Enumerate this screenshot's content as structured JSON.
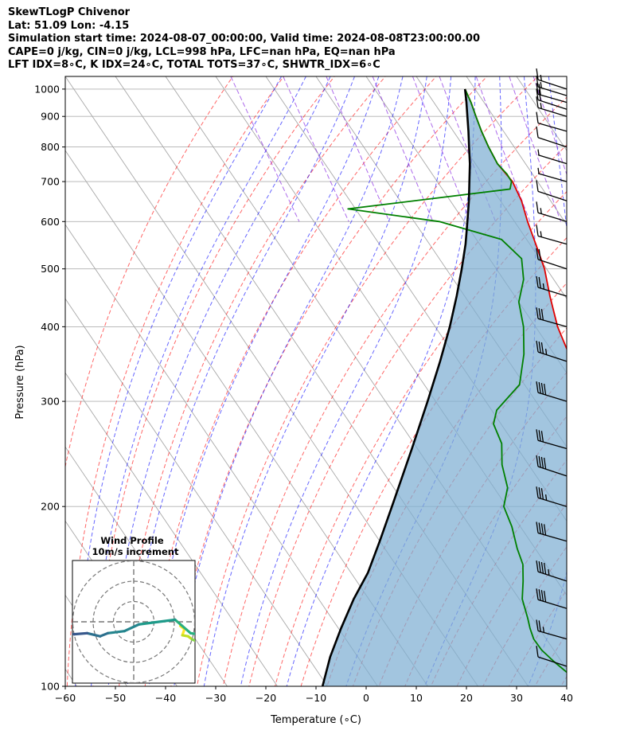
{
  "header": {
    "lines": [
      "SkewTLogP Chivenor",
      "Lat: 51.09   Lon: -4.15",
      "Simulation start time: 2024-08-07_00:00:00, Valid time: 2024-08-08T23:00:00.00",
      "CAPE=0 j/kg, CIN=0 j/kg, LCL=998 hPa, LFC=nan hPa, EQ=nan hPa",
      "LFT IDX=8∘C, K IDX=24∘C, TOTAL TOTS=37∘C, SHWTR_IDX=6∘C"
    ]
  },
  "chart_data": {
    "type": "line",
    "xlabel": "Temperature (∘C)",
    "ylabel": "Pressure (hPa)",
    "xlim": [
      -60,
      40
    ],
    "ylim": [
      1050,
      100
    ],
    "y_scale": "log",
    "grid": true,
    "x_ticks": [
      -60,
      -50,
      -40,
      -30,
      -20,
      -10,
      0,
      10,
      20,
      30,
      40
    ],
    "y_ticks": [
      1000,
      900,
      800,
      700,
      600,
      500,
      400,
      300,
      200,
      100
    ],
    "skew_screen": [
      [
        -60,
        1050,
        82,
        861
      ],
      [
        40,
        1050,
        712,
        861
      ],
      [
        5,
        1050,
        491,
        861
      ],
      [
        -23.3,
        100,
        237,
        96
      ],
      [
        12.7,
        100,
        540,
        96
      ],
      [
        -2,
        100,
        398,
        96
      ]
    ],
    "series": [
      {
        "color": "#e00000",
        "points": [
          [
            18.0,
            1000
          ],
          [
            17.4,
            950
          ],
          [
            16.5,
            900
          ],
          [
            15.6,
            850
          ],
          [
            14.9,
            800
          ],
          [
            14.4,
            750
          ],
          [
            15.0,
            700
          ],
          [
            14.2,
            650
          ],
          [
            12.6,
            600
          ],
          [
            11.2,
            550
          ],
          [
            9.6,
            500
          ],
          [
            7.0,
            450
          ],
          [
            4.4,
            400
          ],
          [
            2.6,
            350
          ],
          [
            -0.2,
            300
          ],
          [
            -3.6,
            250
          ],
          [
            -7.0,
            220
          ],
          [
            -10.8,
            200
          ],
          [
            -11.5,
            185
          ],
          [
            -12.0,
            165
          ],
          [
            -13.5,
            150
          ],
          [
            -14.5,
            140
          ],
          [
            -15.6,
            125
          ],
          [
            -18.0,
            115
          ],
          [
            -20.0,
            105
          ],
          [
            -20.5,
            100
          ]
        ]
      },
      {
        "color": "#008000",
        "points": [
          [
            18.0,
            1000
          ],
          [
            17.4,
            950
          ],
          [
            16.5,
            900
          ],
          [
            15.6,
            850
          ],
          [
            14.9,
            800
          ],
          [
            14.4,
            750
          ],
          [
            14.9,
            720
          ],
          [
            14.8,
            700
          ],
          [
            13.5,
            680
          ],
          [
            -21.5,
            630
          ],
          [
            -5.0,
            600
          ],
          [
            5.0,
            560
          ],
          [
            6.4,
            520
          ],
          [
            4.0,
            480
          ],
          [
            0.0,
            440
          ],
          [
            -2.4,
            400
          ],
          [
            -6.0,
            360
          ],
          [
            -11.0,
            320
          ],
          [
            -19.0,
            290
          ],
          [
            -21.5,
            275
          ],
          [
            -22.5,
            255
          ],
          [
            -25.3,
            235
          ],
          [
            -27.3,
            215
          ],
          [
            -30.6,
            200
          ],
          [
            -31.7,
            185
          ],
          [
            -33.6,
            170
          ],
          [
            -34.6,
            160
          ],
          [
            -36.8,
            150
          ],
          [
            -39.4,
            140
          ],
          [
            -40.9,
            130
          ],
          [
            -41.8,
            125
          ],
          [
            -42.5,
            120
          ],
          [
            -42.4,
            115
          ],
          [
            -41.5,
            110
          ],
          [
            -40.0,
            104
          ],
          [
            -38.8,
            100
          ]
        ]
      },
      {
        "color": "#000000",
        "points": [
          [
            18.0,
            1000
          ],
          [
            16.5,
            950
          ],
          [
            14.8,
            900
          ],
          [
            13.0,
            850
          ],
          [
            11.0,
            800
          ],
          [
            8.9,
            750
          ],
          [
            6.4,
            700
          ],
          [
            3.7,
            650
          ],
          [
            0.6,
            600
          ],
          [
            -2.8,
            550
          ],
          [
            -6.9,
            500
          ],
          [
            -11.6,
            450
          ],
          [
            -17.1,
            400
          ],
          [
            -23.7,
            350
          ],
          [
            -31.6,
            300
          ],
          [
            -41.1,
            250
          ],
          [
            -52.9,
            200
          ],
          [
            -60.0,
            175
          ],
          [
            -66.6,
            155
          ],
          [
            -73.0,
            140
          ],
          [
            -79.5,
            125
          ],
          [
            -85.5,
            112
          ],
          [
            -91.0,
            100
          ]
        ]
      }
    ],
    "wind_barbs": [
      {
        "p": 1000,
        "kt": 15
      },
      {
        "p": 975,
        "kt": 18
      },
      {
        "p": 950,
        "kt": 20
      },
      {
        "p": 925,
        "kt": 20
      },
      {
        "p": 900,
        "kt": 18
      },
      {
        "p": 850,
        "kt": 12
      },
      {
        "p": 800,
        "kt": 10
      },
      {
        "p": 750,
        "kt": 8
      },
      {
        "p": 700,
        "kt": 8
      },
      {
        "p": 650,
        "kt": 10
      },
      {
        "p": 600,
        "kt": 15
      },
      {
        "p": 550,
        "kt": 18
      },
      {
        "p": 500,
        "kt": 22
      },
      {
        "p": 450,
        "kt": 28
      },
      {
        "p": 400,
        "kt": 32
      },
      {
        "p": 350,
        "kt": 35
      },
      {
        "p": 300,
        "kt": 40
      },
      {
        "p": 250,
        "kt": 30
      },
      {
        "p": 225,
        "kt": 40
      },
      {
        "p": 200,
        "kt": 35
      },
      {
        "p": 175,
        "kt": 40
      },
      {
        "p": 150,
        "kt": 45
      },
      {
        "p": 135,
        "kt": 40
      },
      {
        "p": 120,
        "kt": 25
      },
      {
        "p": 108,
        "kt": 12
      }
    ],
    "hodograph": {
      "title": "Wind Profile",
      "subtitle": "10m/s increment",
      "rings": 3,
      "path": [
        [
          9,
          0.8
        ],
        [
          9.8,
          1.4
        ],
        [
          9.4,
          2.6
        ],
        [
          10.5,
          2.8
        ],
        [
          11.3,
          3.4
        ],
        [
          12.0,
          3.7
        ],
        [
          14.0,
          4.0
        ],
        [
          15.2,
          4.2
        ],
        [
          15.0,
          2.8
        ],
        [
          11.0,
          2.2
        ],
        [
          8.0,
          -0.4
        ],
        [
          1.0,
          0.5
        ],
        [
          -1.8,
          1.8
        ],
        [
          -5.0,
          2.2
        ],
        [
          -6.5,
          2.8
        ],
        [
          -9.0,
          2.2
        ],
        [
          -11.5,
          2.4
        ],
        [
          -13.0,
          2.2
        ],
        [
          -15.0,
          2.4
        ],
        [
          -16.0,
          2.0
        ],
        [
          -17.0,
          1.7
        ],
        [
          -18.0,
          1.6
        ],
        [
          -19.0,
          1.8
        ]
      ]
    }
  }
}
